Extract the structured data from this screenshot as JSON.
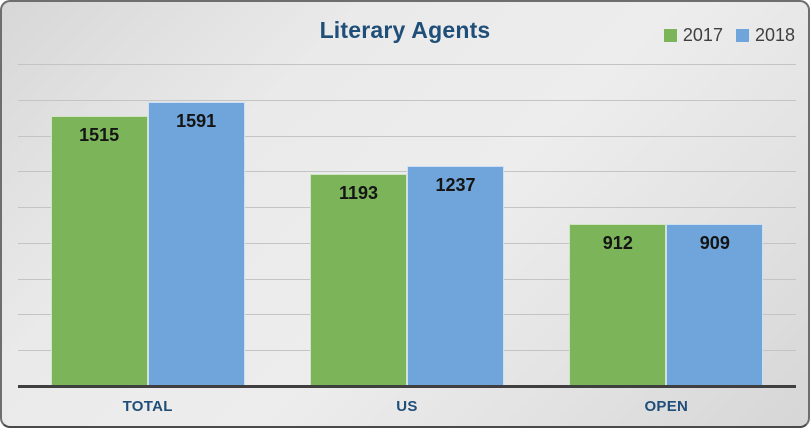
{
  "chart_data": {
    "type": "bar",
    "title": "Literary Agents",
    "categories": [
      "TOTAL",
      "US",
      "OPEN"
    ],
    "series": [
      {
        "name": "2017",
        "color": "#7cb45a",
        "values": [
          1515,
          1193,
          912
        ]
      },
      {
        "name": "2018",
        "color": "#6fa5da",
        "values": [
          1591,
          1237,
          909
        ]
      }
    ],
    "xlabel": "",
    "ylabel": "",
    "ylim": [
      0,
      1800
    ],
    "gridline_step": 200,
    "grid": true,
    "y_axis_labels_visible": false,
    "legend_position": "top-right",
    "data_labels": "inside-end"
  },
  "colors": {
    "title_text": "#1f4e79",
    "category_text": "#1f4e79",
    "legend_text": "#404040",
    "value_label_text": "#151515",
    "gridline": "#c4c4c4",
    "axis_line": "#3f3f3f",
    "card_background": "#e3e3e3",
    "card_border": "#6e6e6e"
  }
}
